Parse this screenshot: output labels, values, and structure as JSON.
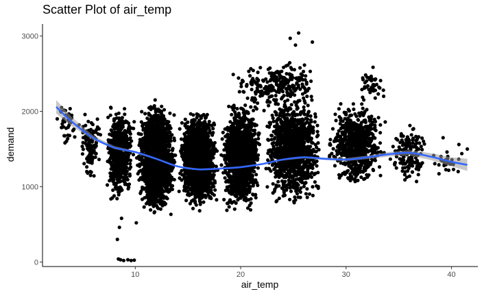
{
  "chart_data": {
    "type": "scatter",
    "title": "Scatter Plot of  air_temp",
    "xlabel": "air_temp",
    "ylabel": "demand",
    "xlim": [
      1.2,
      42.5
    ],
    "ylim": [
      -60,
      3160
    ],
    "x_ticks": [
      10,
      20,
      30,
      40
    ],
    "y_ticks": [
      0,
      1000,
      2000,
      3000
    ],
    "grid": false,
    "legend": "none",
    "point_color": "#000000",
    "smooth_color": "#3366FF",
    "band_color": "#999999",
    "clusters": [
      {
        "x_range": [
          2.5,
          4.5
        ],
        "y_range": [
          1500,
          2150
        ],
        "count": 40
      },
      {
        "x_range": [
          4.5,
          7
        ],
        "y_range": [
          1000,
          2150
        ],
        "count": 120
      },
      {
        "x_range": [
          7,
          10
        ],
        "y_range": [
          750,
          2150
        ],
        "count": 600
      },
      {
        "x_range": [
          10,
          14
        ],
        "y_range": [
          550,
          2200
        ],
        "count": 2000
      },
      {
        "x_range": [
          14,
          18
        ],
        "y_range": [
          650,
          2050
        ],
        "count": 1800
      },
      {
        "x_range": [
          18,
          22
        ],
        "y_range": [
          650,
          2150
        ],
        "count": 1500
      },
      {
        "x_range": [
          19,
          28
        ],
        "y_range": [
          2000,
          2700
        ],
        "count": 260
      },
      {
        "x_range": [
          22,
          28
        ],
        "y_range": [
          700,
          2300
        ],
        "count": 1200
      },
      {
        "x_range": [
          28,
          34
        ],
        "y_range": [
          950,
          2200
        ],
        "count": 700
      },
      {
        "x_range": [
          31,
          34
        ],
        "y_range": [
          2100,
          2650
        ],
        "count": 45
      },
      {
        "x_range": [
          34,
          38
        ],
        "y_range": [
          1000,
          1900
        ],
        "count": 160
      },
      {
        "x_range": [
          38,
          41.5
        ],
        "y_range": [
          1150,
          1550
        ],
        "count": 30
      }
    ],
    "outliers": [
      {
        "x": 8.4,
        "y": 40
      },
      {
        "x": 8.6,
        "y": 30
      },
      {
        "x": 8.9,
        "y": 20
      },
      {
        "x": 9.3,
        "y": 30
      },
      {
        "x": 9.6,
        "y": 20
      },
      {
        "x": 9.9,
        "y": 25
      },
      {
        "x": 8.3,
        "y": 300
      },
      {
        "x": 8.5,
        "y": 460
      },
      {
        "x": 8.7,
        "y": 580
      },
      {
        "x": 10.1,
        "y": 520
      },
      {
        "x": 25.5,
        "y": 3040
      },
      {
        "x": 24.7,
        "y": 2970
      },
      {
        "x": 41.5,
        "y": 1500
      },
      {
        "x": 40.7,
        "y": 1560
      },
      {
        "x": 39.2,
        "y": 1650
      },
      {
        "x": 2.6,
        "y": 1900
      },
      {
        "x": 3.0,
        "y": 2050
      },
      {
        "x": 3.4,
        "y": 1950
      },
      {
        "x": 26.8,
        "y": 2920
      },
      {
        "x": 25.2,
        "y": 2880
      }
    ],
    "smooth": {
      "x": [
        2.5,
        4,
        6,
        8,
        10,
        12,
        14,
        16,
        18,
        20,
        22,
        24,
        26,
        28,
        30,
        32,
        34,
        36,
        38,
        40,
        41.5
      ],
      "y": [
        2060,
        1860,
        1650,
        1520,
        1460,
        1370,
        1270,
        1230,
        1240,
        1260,
        1300,
        1360,
        1390,
        1370,
        1360,
        1390,
        1430,
        1450,
        1400,
        1330,
        1290
      ],
      "band_halfwidth": [
        90,
        60,
        30,
        20,
        15,
        12,
        10,
        10,
        10,
        12,
        12,
        12,
        14,
        16,
        20,
        24,
        30,
        35,
        45,
        60,
        80
      ]
    }
  }
}
